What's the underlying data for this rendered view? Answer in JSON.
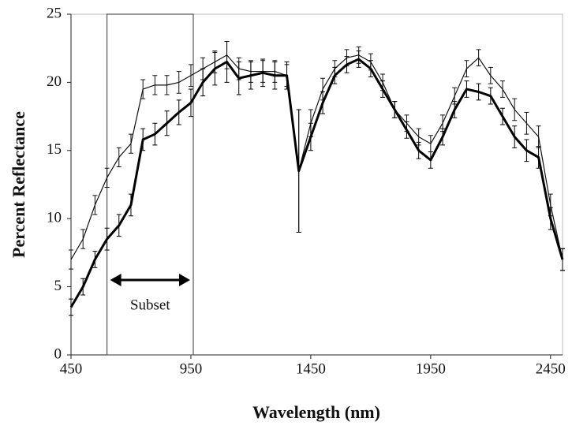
{
  "chart_data": {
    "type": "line",
    "x_label": "Wavelength (nm)",
    "y_label": "Percent Reflectance",
    "x": [
      450,
      500,
      550,
      600,
      650,
      700,
      750,
      800,
      850,
      900,
      950,
      1000,
      1050,
      1100,
      1150,
      1200,
      1250,
      1300,
      1350,
      1400,
      1450,
      1500,
      1550,
      1600,
      1650,
      1700,
      1750,
      1800,
      1850,
      1900,
      1950,
      2000,
      2050,
      2100,
      2150,
      2200,
      2250,
      2300,
      2350,
      2400,
      2450,
      2500
    ],
    "series": [
      {
        "color": "#111111",
        "width": 1.2,
        "values": [
          7,
          8.5,
          11,
          13,
          14.5,
          15.5,
          19.5,
          19.8,
          19.8,
          20,
          20.5,
          21,
          21.5,
          22,
          21,
          20.8,
          20.8,
          20.8,
          20.5,
          13.5,
          17,
          19.5,
          21,
          21.8,
          22,
          21.5,
          20,
          18,
          17,
          16,
          15.5,
          17,
          19,
          21,
          21.8,
          20.5,
          19.5,
          18,
          17,
          16,
          11,
          7
        ],
        "errors": [
          0.7,
          0.7,
          0.7,
          0.7,
          0.7,
          0.7,
          0.7,
          0.7,
          0.7,
          0.8,
          0.8,
          0.8,
          0.8,
          1,
          0.8,
          0.8,
          0.8,
          0.8,
          0.8,
          4.5,
          1,
          0.8,
          0.6,
          0.6,
          0.6,
          0.6,
          0.6,
          0.6,
          0.6,
          0.6,
          0.6,
          0.6,
          0.6,
          0.6,
          0.6,
          0.6,
          0.6,
          0.8,
          0.8,
          0.8,
          0.8,
          0.8
        ]
      },
      {
        "color": "#000000",
        "width": 3,
        "values": [
          3.5,
          5,
          7,
          8.5,
          9.5,
          11,
          15.8,
          16.2,
          17,
          17.8,
          18.5,
          20,
          21,
          21.5,
          20.3,
          20.5,
          20.7,
          20.5,
          20.5,
          13.5,
          16,
          18.5,
          20.5,
          21.3,
          21.7,
          21,
          19.5,
          18,
          16.5,
          15,
          14.3,
          16,
          18,
          19.5,
          19.3,
          19,
          17.5,
          16,
          15,
          14.5,
          10,
          7
        ],
        "errors": [
          0.6,
          0.6,
          0.6,
          0.8,
          0.8,
          0.8,
          0.8,
          0.8,
          0.9,
          0.9,
          1,
          1,
          1.2,
          1.5,
          1.2,
          1,
          1,
          1,
          1,
          4.5,
          1,
          0.8,
          0.6,
          0.6,
          0.6,
          0.6,
          0.6,
          0.6,
          0.6,
          0.6,
          0.6,
          0.6,
          0.6,
          0.6,
          0.6,
          0.6,
          0.6,
          0.8,
          0.8,
          0.8,
          0.8,
          0.8
        ]
      }
    ],
    "xlim": [
      450,
      2500
    ],
    "xticks": [
      450,
      950,
      1450,
      1950,
      2450
    ],
    "ylim": [
      0,
      25
    ],
    "yticks": [
      0,
      5,
      10,
      15,
      20,
      25
    ],
    "annotations": [
      {
        "text": "Subset",
        "x0": 600,
        "x1": 960
      }
    ]
  }
}
